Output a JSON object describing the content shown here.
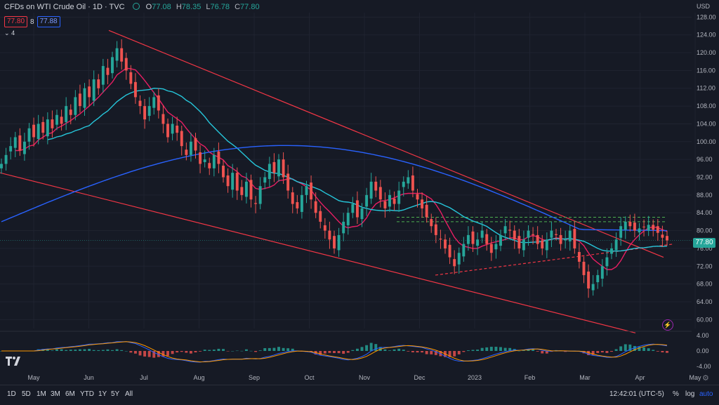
{
  "header": {
    "title": "CFDs on WTI Crude Oil · 1D · TVC",
    "o_label": "O",
    "o_value": "77.08",
    "h_label": "H",
    "h_value": "78.35",
    "l_label": "L",
    "l_value": "76.78",
    "c_label": "C",
    "c_value": "77.80"
  },
  "trade": {
    "sell": "77.80",
    "spread": "8",
    "buy": "77.88"
  },
  "indicators_toggle": "4",
  "axis_currency": "USD",
  "last_price": "77.80",
  "bottom": {
    "timeframes": [
      "1D",
      "5D",
      "1M",
      "3M",
      "6M",
      "YTD",
      "1Y",
      "5Y",
      "All"
    ],
    "clock": "12:42:01 (UTC-5)",
    "percent": "%",
    "log": "log",
    "auto": "auto"
  },
  "colors": {
    "bg": "#161a25",
    "up": "#26a69a",
    "down": "#ef5350",
    "ma_fast": "#e91e63",
    "ma_mid": "#26c6da",
    "ma_slow": "#2962ff",
    "channel": "#f23645",
    "support": "#4caf50"
  },
  "chart_data": {
    "type": "candlestick",
    "price_axis": [
      "128.00",
      "124.00",
      "120.00",
      "116.00",
      "112.00",
      "108.00",
      "104.00",
      "100.00",
      "96.00",
      "92.00",
      "88.00",
      "84.00",
      "80.00",
      "76.00",
      "72.00",
      "68.00",
      "64.00",
      "60.00"
    ],
    "macd_axis": [
      "4.00",
      "0.00",
      "-4.00"
    ],
    "time_axis": [
      "May",
      "Jun",
      "Jul",
      "Aug",
      "Sep",
      "Oct",
      "Nov",
      "Dec",
      "2023",
      "Feb",
      "Mar",
      "Apr",
      "May"
    ],
    "ylim": [
      58,
      129
    ],
    "closes": [
      95,
      97,
      99,
      101,
      98,
      100,
      103,
      101,
      104,
      102,
      105,
      103,
      106,
      104,
      108,
      106,
      110,
      108,
      112,
      110,
      114,
      112,
      117,
      115,
      119,
      121,
      118,
      116,
      113,
      110,
      108,
      105,
      108,
      110,
      107,
      104,
      101,
      104,
      102,
      99,
      97,
      100,
      98,
      95,
      96,
      94,
      97,
      95,
      92,
      90,
      93,
      89,
      88,
      91,
      87,
      86,
      90,
      92,
      95,
      93,
      96,
      92,
      89,
      86,
      85,
      88,
      90,
      87,
      84,
      82,
      80,
      78,
      76,
      79,
      82,
      84,
      86,
      83,
      85,
      88,
      91,
      89,
      87,
      85,
      88,
      86,
      89,
      91,
      92,
      89,
      87,
      85,
      83,
      81,
      79,
      78,
      76,
      74,
      72,
      75,
      77,
      79,
      77,
      78,
      80,
      77,
      75,
      77,
      79,
      81,
      80,
      78,
      76,
      78,
      80,
      79,
      77,
      76,
      78,
      80,
      79,
      77,
      78,
      80,
      76,
      73,
      70,
      67,
      68,
      70,
      72,
      74,
      76,
      78,
      81,
      82,
      81,
      80,
      80.5,
      80.8,
      81.3,
      80.2,
      79.5,
      78.4,
      77.8
    ],
    "series": [
      {
        "name": "MA fast",
        "color": "#e91e63"
      },
      {
        "name": "MA mid",
        "color": "#26c6da"
      },
      {
        "name": "MA slow",
        "color": "#2962ff"
      }
    ],
    "levels": [
      83,
      82
    ],
    "legend": "none"
  }
}
